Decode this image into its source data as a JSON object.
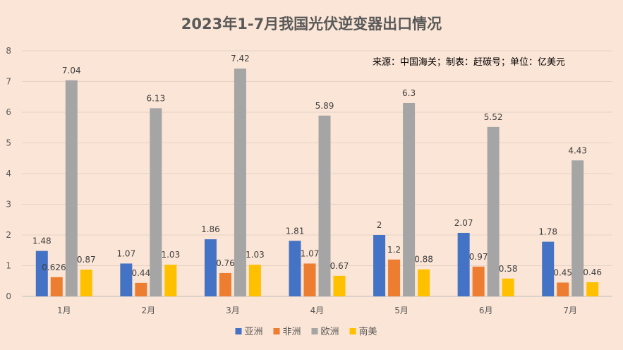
{
  "chart_data": {
    "type": "bar",
    "title": "2023年1-7月我国光伏逆变器出口情况",
    "note": "来源：中国海关；制表：赶碳号；单位：亿美元",
    "categories": [
      "1月",
      "2月",
      "3月",
      "4月",
      "5月",
      "6月",
      "7月"
    ],
    "series": [
      {
        "name": "亚洲",
        "color": "#4472C4",
        "values": [
          1.48,
          1.07,
          1.86,
          1.81,
          2,
          2.07,
          1.78
        ],
        "labels": [
          "1.48",
          "1.07",
          "1.86",
          "1.81",
          "2",
          "2.07",
          "1.78"
        ]
      },
      {
        "name": "非洲",
        "color": "#ED7D31",
        "values": [
          0.6263,
          0.44,
          0.76,
          1.07,
          1.2,
          0.97,
          0.45
        ],
        "labels": [
          "0.6263",
          "0.44",
          "0.76",
          "1.07",
          "1.2",
          "0.97",
          "0.45"
        ]
      },
      {
        "name": "欧洲",
        "color": "#A5A5A5",
        "values": [
          7.04,
          6.13,
          7.42,
          5.89,
          6.3,
          5.52,
          4.43
        ],
        "labels": [
          "7.04",
          "6.13",
          "7.42",
          "5.89",
          "6.3",
          "5.52",
          "4.43"
        ]
      },
      {
        "name": "南美",
        "color": "#FFC000",
        "values": [
          0.87,
          1.03,
          1.03,
          0.67,
          0.88,
          0.58,
          0.46
        ],
        "labels": [
          "0.87",
          "1.03",
          "1.03",
          "0.67",
          "0.88",
          "0.58",
          "0.46"
        ]
      }
    ],
    "yticks": [
      "0",
      "1",
      "2",
      "3",
      "4",
      "5",
      "6",
      "7",
      "8"
    ],
    "ylim": [
      0,
      8
    ],
    "grid": true,
    "legend_position": "bottom"
  }
}
